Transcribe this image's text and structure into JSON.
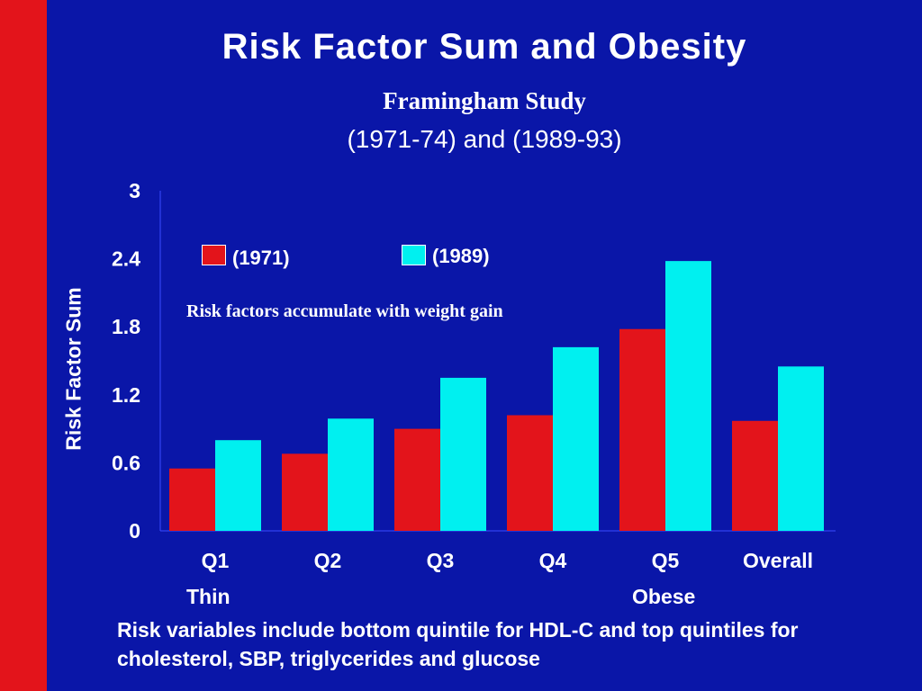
{
  "colors": {
    "background": "#0a16a8",
    "sidebar": "#e3141b",
    "series_1971": "#e3141b",
    "series_1989": "#00f0f0",
    "text": "#ffffff"
  },
  "header": {
    "title": "Risk Factor Sum and Obesity",
    "subtitle1": "Framingham Study",
    "subtitle2": "(1971-74) and (1989-93)"
  },
  "annotation": "Risk factors accumulate with weight gain",
  "axis_notes": {
    "thin": "Thin",
    "obese": "Obese"
  },
  "footnote": "Risk variables include bottom quintile for HDL-C and top quintiles for cholesterol, SBP, triglycerides and glucose",
  "chart_data": {
    "type": "bar",
    "title": "Risk Factor Sum and Obesity",
    "xlabel": "",
    "ylabel": "Risk Factor Sum",
    "ylim": [
      0,
      3
    ],
    "yticks": [
      "0",
      "0.6",
      "1.2",
      "1.8",
      "2.4",
      "3"
    ],
    "categories": [
      "Q1",
      "Q2",
      "Q3",
      "Q4",
      "Q5",
      "Overall"
    ],
    "series": [
      {
        "name": "(1971)",
        "values": [
          0.55,
          0.68,
          0.9,
          1.02,
          1.78,
          0.97
        ]
      },
      {
        "name": "(1989)",
        "values": [
          0.8,
          0.99,
          1.35,
          1.62,
          2.38,
          1.45
        ]
      }
    ],
    "legend_position": "top-left",
    "grid": false
  }
}
